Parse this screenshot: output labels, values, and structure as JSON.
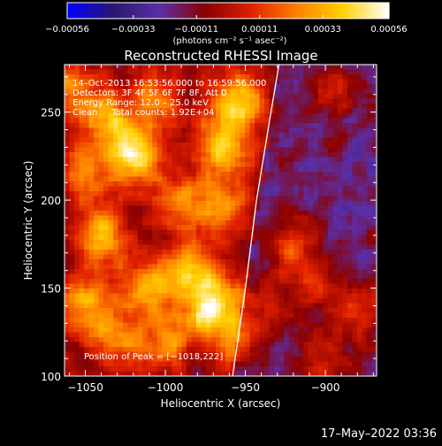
{
  "chart_data": {
    "type": "heatmap",
    "title": "Reconstructed RHESSI Image",
    "xlabel": "Heliocentric X (arcsec)",
    "ylabel": "Heliocentric Y (arcsec)",
    "xlim": [
      -1063,
      -868
    ],
    "ylim": [
      100,
      277
    ],
    "x_ticks": [
      -1050,
      -1000,
      -950,
      -900
    ],
    "x_tick_labels": [
      "−1050",
      "−1000",
      "−950",
      "−900"
    ],
    "y_ticks": [
      100,
      150,
      200,
      250
    ],
    "y_tick_labels": [
      "100",
      "150",
      "200",
      "250"
    ],
    "colorbar": {
      "range": [
        -0.00056,
        0.00056
      ],
      "ticks": [
        -0.00056,
        -0.00033,
        -0.00011,
        0.00011,
        0.00033,
        0.00056
      ],
      "tick_labels": [
        "−0.00056",
        "−0.00033",
        "−0.00011",
        "0.00011",
        "0.00033",
        "0.00056"
      ],
      "units_label": "(photons cm⁻² s⁻¹ asec⁻²)"
    },
    "colormap": [
      "#0000ff",
      "#2a1870",
      "#5b2fa8",
      "#8a0000",
      "#e02000",
      "#ff8000",
      "#ffd000",
      "#ffffff"
    ],
    "annotations": [
      "14–Oct–2013 16:53:56.000 to 16:59:56.000",
      "Detectors: 3F 4F 5F 6F 7F 8F, Att 0",
      "Energy Range: 12.0 – 25.0 keV",
      "Clean     Total counts: 1.92E+04"
    ],
    "peak_label": "Position of Peak = [−1018,222]",
    "peak_position": [
      -1018,
      222
    ],
    "limb": [
      [
        -958,
        100
      ],
      [
        -950,
        150
      ],
      [
        -943,
        200
      ],
      [
        -934,
        250
      ],
      [
        -929,
        277
      ]
    ],
    "blobs": [
      {
        "x": -1020,
        "y": 225,
        "value": 0.00056
      },
      {
        "x": -1035,
        "y": 245,
        "value": 0.0004
      },
      {
        "x": -1050,
        "y": 215,
        "value": 0.0003
      },
      {
        "x": -1040,
        "y": 180,
        "value": 0.00045
      },
      {
        "x": -1050,
        "y": 140,
        "value": 0.0004
      },
      {
        "x": -1030,
        "y": 120,
        "value": 0.0003
      },
      {
        "x": -1010,
        "y": 150,
        "value": 0.0004
      },
      {
        "x": -1000,
        "y": 120,
        "value": 0.0003
      },
      {
        "x": -985,
        "y": 160,
        "value": 0.0004
      },
      {
        "x": -975,
        "y": 135,
        "value": 0.00035
      },
      {
        "x": -990,
        "y": 200,
        "value": 0.0003
      },
      {
        "x": -965,
        "y": 230,
        "value": 0.00045
      },
      {
        "x": -955,
        "y": 255,
        "value": 0.0005
      },
      {
        "x": -965,
        "y": 195,
        "value": 0.00035
      },
      {
        "x": -965,
        "y": 145,
        "value": 0.0003
      },
      {
        "x": -955,
        "y": 120,
        "value": 0.0003
      },
      {
        "x": -920,
        "y": 175,
        "value": 0.0003
      },
      {
        "x": -905,
        "y": 150,
        "value": 0.00025
      },
      {
        "x": -875,
        "y": 135,
        "value": 0.0003
      },
      {
        "x": -900,
        "y": 110,
        "value": 0.00025
      },
      {
        "x": -935,
        "y": 140,
        "value": 0.0002
      },
      {
        "x": -895,
        "y": 262,
        "value": 0.0002
      },
      {
        "x": -1058,
        "y": 262,
        "value": 0.00035
      },
      {
        "x": -1005,
        "y": 255,
        "value": 0.0003
      }
    ]
  },
  "footer": {
    "timestamp": "17–May–2022 03:36"
  }
}
